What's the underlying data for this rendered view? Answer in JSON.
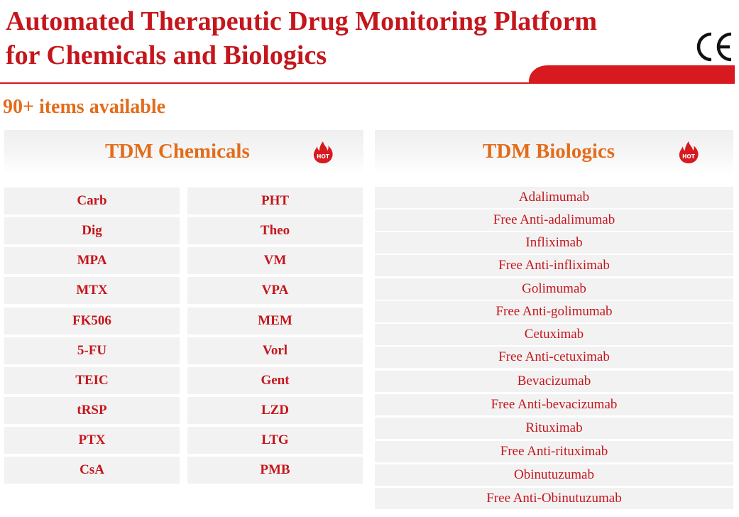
{
  "header": {
    "title_line1": "Automated Therapeutic Drug Monitoring Platform",
    "title_line2": "for Chemicals and Biologics",
    "ce_mark": "CE",
    "icon": "ce-mark-icon",
    "accent_color": "#c4161c",
    "bar_color": "#d71920"
  },
  "subtitle": "90+ items available",
  "chemicals": {
    "title": "TDM Chemicals",
    "badge": "HOT",
    "icon": "hot-flame-icon",
    "column1": [
      "Carb",
      "Dig",
      "MPA",
      "MTX",
      "FK506",
      "5-FU",
      "TEIC",
      "tRSP",
      "PTX",
      "CsA"
    ],
    "column2": [
      "PHT",
      "Theo",
      "VM",
      "VPA",
      "MEM",
      "Vorl",
      "Gent",
      "LZD",
      "LTG",
      "PMB"
    ]
  },
  "biologics": {
    "title": "TDM Biologics",
    "badge": "HOT",
    "icon": "hot-flame-icon",
    "items": [
      "Adalimumab",
      "Free Anti-adalimumab",
      "Infliximab",
      "Free Anti-infliximab",
      "Golimumab",
      "Free Anti-golimumab",
      "Cetuximab",
      "Free Anti-cetuximab",
      "Bevacizumab",
      "Free Anti-bevacizumab",
      "Rituximab",
      "Free Anti-rituximab",
      "Obinutuzumab",
      "Free Anti-Obinutuzumab"
    ]
  },
  "colors": {
    "heading_orange": "#e36c1a",
    "item_red": "#c4161c",
    "cell_gray": "#f2f2f2"
  }
}
